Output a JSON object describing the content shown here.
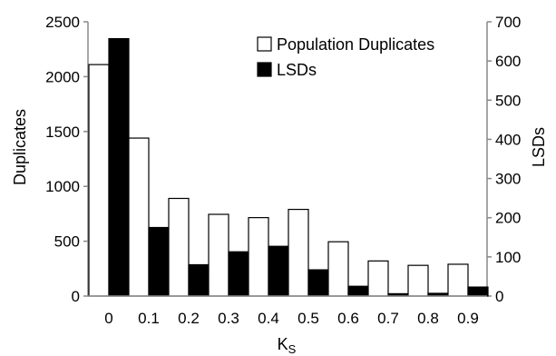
{
  "chart_data": {
    "type": "bar",
    "categories": [
      "0",
      "0.1",
      "0.2",
      "0.3",
      "0.4",
      "0.5",
      "0.6",
      "0.7",
      "0.8",
      "0.9"
    ],
    "series": [
      {
        "name": "Population Duplicates",
        "axis": "left",
        "color": "#ffffff",
        "stroke": "#000000",
        "values": [
          2110,
          1440,
          890,
          745,
          715,
          790,
          495,
          320,
          280,
          290
        ]
      },
      {
        "name": "LSDs",
        "axis": "right",
        "color": "#000000",
        "stroke": "#000000",
        "values": [
          657,
          175,
          80,
          113,
          127,
          67,
          25,
          6,
          7,
          23
        ]
      }
    ],
    "xlabel": "K",
    "xlabel_subscript": "S",
    "ylabel": "Duplicates",
    "y2label": "LSDs",
    "ylim": [
      0,
      2500
    ],
    "y2lim": [
      0,
      700
    ],
    "yticks": [
      0,
      500,
      1000,
      1500,
      2000,
      2500
    ],
    "y2ticks": [
      0,
      100,
      200,
      300,
      400,
      500,
      600,
      700
    ],
    "grid": false,
    "legend_position": "top-right"
  }
}
